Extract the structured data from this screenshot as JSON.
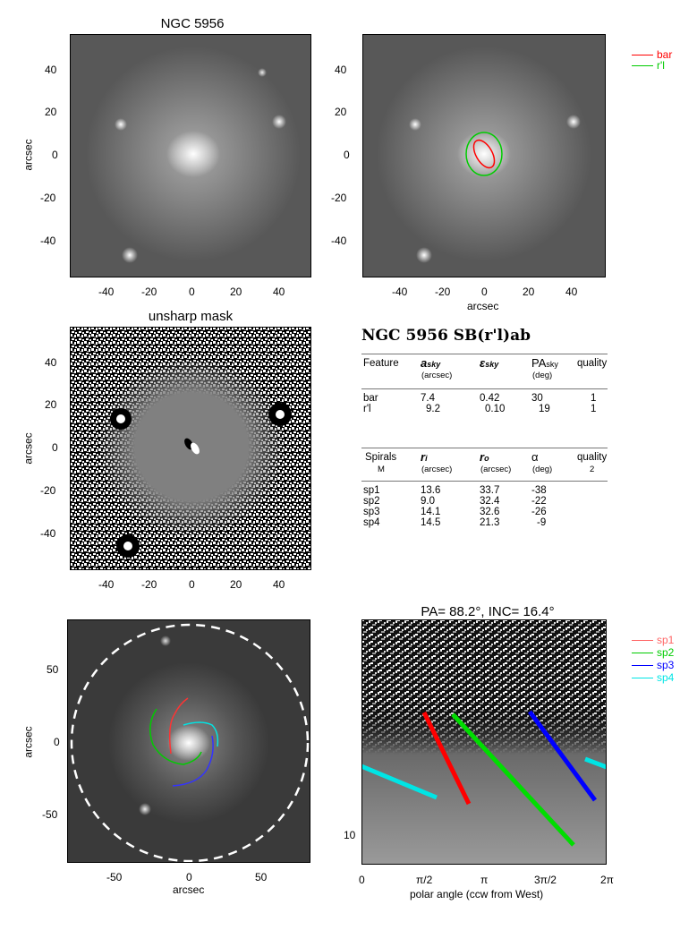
{
  "panel1": {
    "title": "NGC 5956",
    "ylabel": "arcsec",
    "xticks": [
      "-40",
      "-20",
      "0",
      "20",
      "40"
    ],
    "yticks": [
      "40",
      "20",
      "0",
      "-20",
      "-40"
    ]
  },
  "panel2": {
    "xlabel": "arcsec",
    "xticks": [
      "-40",
      "-20",
      "0",
      "20",
      "40"
    ],
    "yticks": [
      "40",
      "20",
      "0",
      "-20",
      "-40"
    ],
    "legend": [
      {
        "label": "bar",
        "color": "#ff0000"
      },
      {
        "label": "r'l",
        "color": "#00cc00"
      }
    ]
  },
  "panel3": {
    "title": "unsharp mask",
    "ylabel": "arcsec",
    "xticks": [
      "-40",
      "-20",
      "0",
      "20",
      "40"
    ],
    "yticks": [
      "40",
      "20",
      "0",
      "-20",
      "-40"
    ]
  },
  "table": {
    "title": "NGC 5956  SB(r'l)ab",
    "features_header": [
      "Feature",
      "a",
      "ε",
      "PA",
      "quality"
    ],
    "features_header_sub": [
      "sky",
      "sky",
      "sky"
    ],
    "features_units": [
      "(arcsec)",
      "(deg)"
    ],
    "features": [
      {
        "name": "bar",
        "a": "7.4",
        "e": "0.42",
        "pa": "30",
        "q": "1"
      },
      {
        "name": "r'l",
        "a": "9.2",
        "e": "0.10",
        "pa": "19",
        "q": "1"
      }
    ],
    "spirals_header": [
      "Spirals",
      "r",
      "r",
      "α",
      "quality"
    ],
    "spirals_header_sub": [
      "i",
      "o"
    ],
    "spirals_units": [
      "M",
      "(arcsec)",
      "(arcsec)",
      "(deg)",
      "2"
    ],
    "spirals": [
      {
        "name": "sp1",
        "ri": "13.6",
        "ro": "33.7",
        "alpha": "-38"
      },
      {
        "name": "sp2",
        "ri": "9.0",
        "ro": "32.4",
        "alpha": "-22"
      },
      {
        "name": "sp3",
        "ri": "14.1",
        "ro": "32.6",
        "alpha": "-26"
      },
      {
        "name": "sp4",
        "ri": "14.5",
        "ro": "21.3",
        "alpha": "-9"
      }
    ]
  },
  "panel5": {
    "xlabel": "arcsec",
    "ylabel": "arcsec",
    "xticks": [
      "-50",
      "0",
      "50"
    ],
    "yticks": [
      "50",
      "0",
      "-50"
    ]
  },
  "panel6": {
    "title": "PA=  88.2°, INC=  16.4°",
    "xlabel": "polar angle (ccw from West)",
    "xticks": [
      "0",
      "π/2",
      "π",
      "3π/2",
      "2π"
    ],
    "yticks": [
      "10"
    ],
    "legend": [
      {
        "label": "sp1",
        "color": "#ff6666"
      },
      {
        "label": "sp2",
        "color": "#00cc00"
      },
      {
        "label": "sp3",
        "color": "#0000ff"
      },
      {
        "label": "sp4",
        "color": "#00e5e5"
      }
    ]
  }
}
